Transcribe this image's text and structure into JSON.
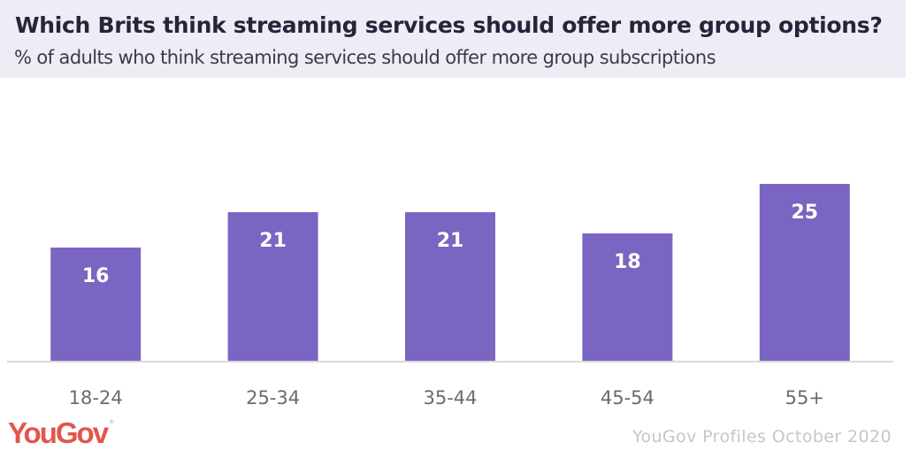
{
  "header": {
    "title": "Which Brits think streaming services should offer more group options?",
    "subtitle": "% of adults who think streaming services should offer more group subscriptions"
  },
  "footer": {
    "logo": "YouGov",
    "logo_mark": "®",
    "source": "YouGov Profiles October 2020"
  },
  "colors": {
    "bar": "#7b65c2",
    "header_bg": "#eeedf6",
    "logo": "#e1564b",
    "axis": "#d9d9d9"
  },
  "chart_data": {
    "type": "bar",
    "title": "Which Brits think streaming services should offer more group options?",
    "subtitle": "% of adults who think streaming services should offer more group subscriptions",
    "categories": [
      "18-24",
      "25-34",
      "35-44",
      "45-54",
      "55+"
    ],
    "values": [
      16,
      21,
      21,
      18,
      25
    ],
    "xlabel": "",
    "ylabel": "",
    "ylim": [
      0,
      30
    ],
    "grid": false,
    "legend": "none",
    "data_labels": "inside-top"
  }
}
